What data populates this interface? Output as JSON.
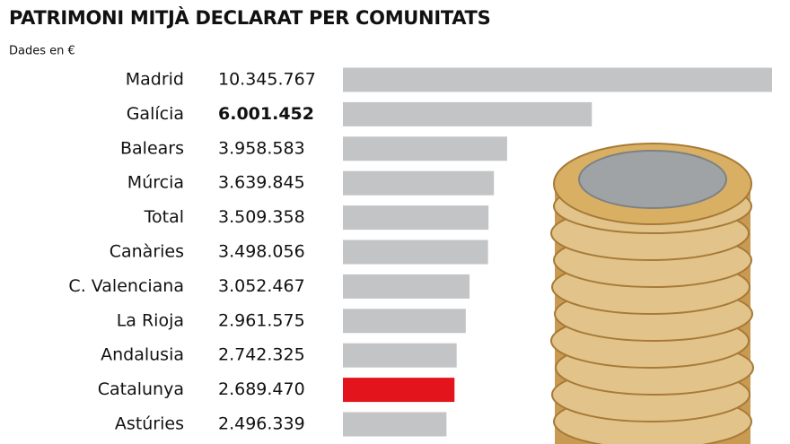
{
  "chart_data": {
    "type": "bar",
    "orientation": "horizontal",
    "title": "PATRIMONI MITJÀ DECLARAT PER COMUNITATS",
    "subtitle": "Dades en €",
    "categories": [
      "Madrid",
      "Galícia",
      "Balears",
      "Múrcia",
      "Total",
      "Canàries",
      "C. Valenciana",
      "La Rioja",
      "Andalusia",
      "Catalunya",
      "Astúries"
    ],
    "values": [
      10345767,
      6001452,
      3958583,
      3639845,
      3509358,
      3498056,
      3052467,
      2961575,
      2742325,
      2689470,
      2496339
    ],
    "value_labels": [
      "10.345.767",
      "6.001.452",
      "3.958.583",
      "3.639.845",
      "3.509.358",
      "3.498.056",
      "3.052.467",
      "2.961.575",
      "2.742.325",
      "2.689.470",
      "2.496.339"
    ],
    "colors": [
      "#c2c4c6",
      "#c2c4c6",
      "#c2c4c6",
      "#c2c4c6",
      "#c2c4c6",
      "#c2c4c6",
      "#c2c4c6",
      "#c2c4c6",
      "#c2c4c6",
      "#e3141c",
      "#c2c4c6"
    ]
  }
}
